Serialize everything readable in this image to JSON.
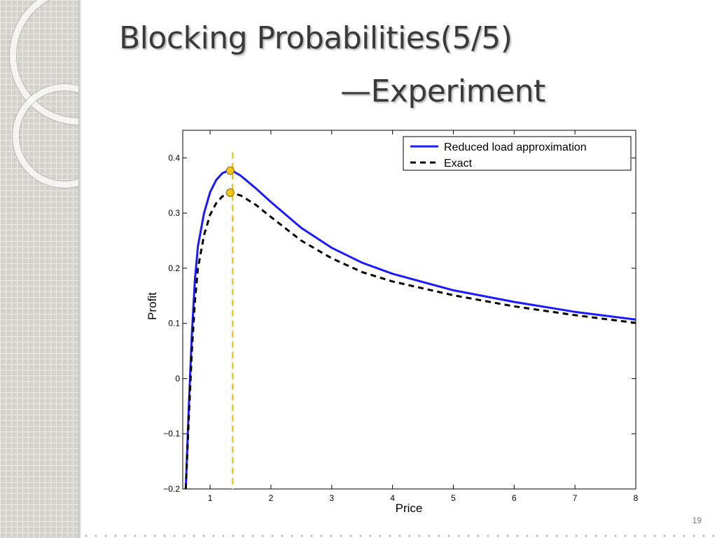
{
  "slide": {
    "title": "Blocking Probabilities(5/5)",
    "subtitle": "—Experiment",
    "page_number": "19"
  },
  "chart_data": {
    "type": "line",
    "title": "",
    "xlabel": "Price",
    "ylabel": "Profit",
    "xlim": [
      0.55,
      8
    ],
    "ylim": [
      -0.2,
      0.45
    ],
    "x_ticks": [
      1,
      2,
      3,
      4,
      5,
      6,
      7,
      8
    ],
    "x_tick_labels": [
      "1",
      "2",
      "3",
      "4",
      "5",
      "6",
      "7",
      "8"
    ],
    "y_ticks": [
      -0.2,
      -0.1,
      0,
      0.1,
      0.2,
      0.3,
      0.4
    ],
    "y_tick_labels": [
      "−0.2",
      "−0.1",
      "0",
      "0.1",
      "0.2",
      "0.3",
      "0.4"
    ],
    "grid": false,
    "legend_position": "top-right",
    "series": [
      {
        "name": "Reduced load approximation",
        "style": "solid",
        "color": "#1a1aff",
        "x": [
          0.6,
          0.65,
          0.7,
          0.75,
          0.8,
          0.9,
          1.0,
          1.1,
          1.2,
          1.3,
          1.36,
          1.5,
          1.75,
          2.0,
          2.5,
          3.0,
          3.5,
          4.0,
          5.0,
          6.0,
          7.0,
          8.0
        ],
        "y": [
          -0.2,
          -0.05,
          0.08,
          0.18,
          0.24,
          0.3,
          0.338,
          0.36,
          0.372,
          0.377,
          0.377,
          0.368,
          0.345,
          0.32,
          0.273,
          0.237,
          0.21,
          0.19,
          0.16,
          0.139,
          0.121,
          0.107
        ]
      },
      {
        "name": "Exact",
        "style": "dashed",
        "color": "#000000",
        "x": [
          0.6,
          0.65,
          0.7,
          0.75,
          0.8,
          0.9,
          1.0,
          1.1,
          1.2,
          1.3,
          1.37,
          1.5,
          1.75,
          2.0,
          2.5,
          3.0,
          3.5,
          4.0,
          5.0,
          6.0,
          7.0,
          8.0
        ],
        "y": [
          -0.2,
          -0.07,
          0.05,
          0.14,
          0.2,
          0.26,
          0.297,
          0.318,
          0.33,
          0.335,
          0.336,
          0.332,
          0.315,
          0.293,
          0.25,
          0.218,
          0.193,
          0.176,
          0.151,
          0.131,
          0.115,
          0.101
        ]
      }
    ],
    "annotations": [
      {
        "type": "vertical-line",
        "x": 1.37,
        "style": "dashed",
        "color": "#f5c518"
      },
      {
        "type": "marker",
        "x": 1.33,
        "y": 0.377,
        "color": "#f5c518",
        "series": "Reduced load approximation"
      },
      {
        "type": "marker",
        "x": 1.33,
        "y": 0.337,
        "color": "#f5c518",
        "series": "Exact"
      }
    ]
  }
}
